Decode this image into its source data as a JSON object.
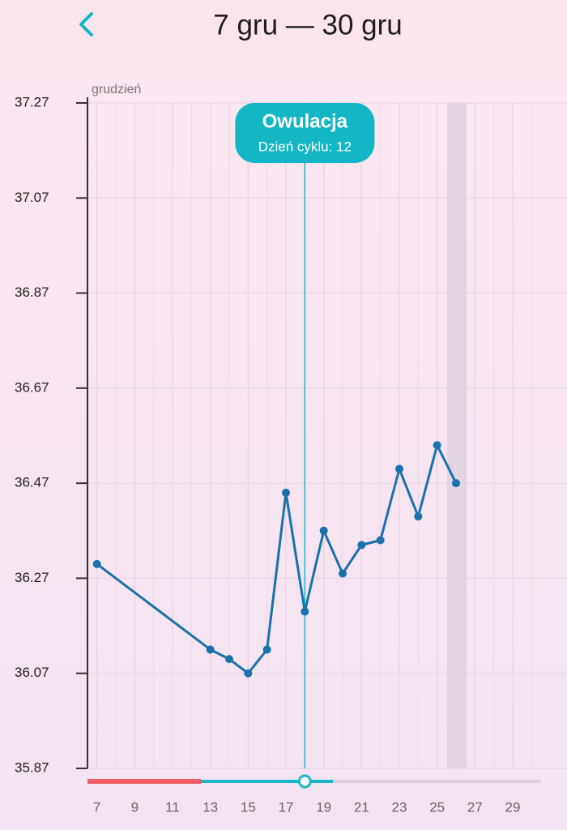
{
  "header": {
    "title": "7 gru — 30 gru"
  },
  "chart_data": {
    "type": "line",
    "x_label": "grudzień",
    "x": [
      7,
      13,
      14,
      15,
      16,
      17,
      18,
      19,
      20,
      21,
      22,
      23,
      24,
      25,
      26
    ],
    "series": [
      {
        "color": "#1a72ad",
        "values": [
          36.3,
          36.12,
          36.1,
          36.07,
          36.12,
          36.45,
          36.2,
          36.37,
          36.28,
          36.34,
          36.35,
          36.5,
          36.4,
          36.55,
          36.47
        ]
      }
    ],
    "xlim": [
      6.5,
      30.5
    ],
    "xticks": [
      7,
      9,
      11,
      13,
      15,
      17,
      19,
      21,
      23,
      25,
      27,
      29
    ],
    "ylim": [
      35.87,
      37.27
    ],
    "yticks": [
      35.87,
      36.07,
      36.27,
      36.47,
      36.67,
      36.87,
      37.07,
      37.27
    ],
    "grid": true,
    "annotation": {
      "x": 18,
      "title": "Owulacja",
      "text": "Dzień cyklu: 12"
    }
  }
}
